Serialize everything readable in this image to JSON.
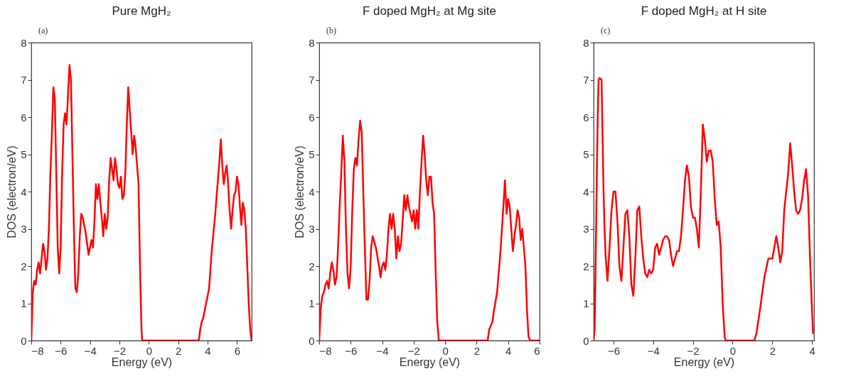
{
  "chart_data": [
    {
      "type": "line",
      "title": "Pure MgH₂",
      "xlabel": "Energy (eV)",
      "ylabel": "DOS (electron/eV)",
      "annotations": [
        "(a)"
      ],
      "xlim": [
        -8,
        7
      ],
      "ylim": [
        0,
        8
      ],
      "xticks": [
        -8,
        -6,
        -4,
        -2,
        0,
        2,
        4,
        6
      ],
      "yticks": [
        0,
        1,
        2,
        3,
        4,
        5,
        6,
        7,
        8
      ],
      "series": [
        {
          "color": "#ff0000",
          "x": [
            -8.0,
            -7.9,
            -7.8,
            -7.7,
            -7.6,
            -7.5,
            -7.4,
            -7.3,
            -7.2,
            -7.1,
            -7.0,
            -6.9,
            -6.8,
            -6.7,
            -6.6,
            -6.5,
            -6.4,
            -6.3,
            -6.2,
            -6.1,
            -6.0,
            -5.9,
            -5.8,
            -5.7,
            -5.6,
            -5.5,
            -5.4,
            -5.3,
            -5.2,
            -5.1,
            -5.0,
            -4.9,
            -4.8,
            -4.7,
            -4.6,
            -4.5,
            -4.3,
            -4.1,
            -4.0,
            -3.9,
            -3.8,
            -3.7,
            -3.6,
            -3.5,
            -3.4,
            -3.3,
            -3.2,
            -3.1,
            -3.0,
            -2.9,
            -2.8,
            -2.7,
            -2.6,
            -2.5,
            -2.4,
            -2.3,
            -2.2,
            -2.1,
            -2.0,
            -1.9,
            -1.8,
            -1.7,
            -1.6,
            -1.5,
            -1.4,
            -1.3,
            -1.2,
            -1.1,
            -1.0,
            -0.9,
            -0.8,
            -0.7,
            -0.6,
            -0.5,
            -0.45,
            3.4,
            3.5,
            3.6,
            3.7,
            3.9,
            4.1,
            4.3,
            4.5,
            4.7,
            4.8,
            4.9,
            5.0,
            5.1,
            5.2,
            5.3,
            5.4,
            5.5,
            5.6,
            5.7,
            5.8,
            5.9,
            6.0,
            6.1,
            6.2,
            6.3,
            6.4,
            6.5,
            6.6,
            6.7,
            6.8,
            6.9,
            7.0
          ],
          "values": [
            0,
            1.3,
            1.6,
            1.5,
            1.9,
            2.1,
            1.8,
            2.2,
            2.6,
            2.4,
            1.9,
            2.2,
            3.0,
            4.5,
            5.5,
            6.8,
            6.5,
            4.5,
            2.5,
            1.8,
            2.5,
            4.5,
            5.8,
            6.1,
            5.8,
            6.6,
            7.4,
            7.0,
            5.0,
            3.0,
            1.4,
            1.3,
            1.8,
            2.8,
            3.4,
            3.3,
            2.9,
            2.3,
            2.5,
            2.7,
            2.5,
            3.2,
            4.2,
            3.8,
            4.2,
            3.7,
            3.3,
            2.8,
            3.4,
            3.0,
            3.3,
            4.3,
            4.9,
            4.6,
            4.3,
            4.9,
            4.6,
            4.2,
            4.1,
            4.4,
            3.8,
            3.9,
            4.5,
            5.8,
            6.8,
            6.2,
            5.6,
            5.0,
            5.5,
            5.2,
            4.7,
            4.2,
            2.0,
            0.3,
            0,
            0,
            0.3,
            0.5,
            0.6,
            1.0,
            1.4,
            2.5,
            3.3,
            4.3,
            4.8,
            5.4,
            4.7,
            4.2,
            4.5,
            4.7,
            4.2,
            3.5,
            3.0,
            3.5,
            3.9,
            4.0,
            4.4,
            4.2,
            3.6,
            3.1,
            3.7,
            3.5,
            3.0,
            2.0,
            1.0,
            0.3,
            0
          ]
        }
      ]
    },
    {
      "type": "line",
      "title": "F doped MgH₂ at Mg site",
      "xlabel": "Energy (eV)",
      "ylabel": "DOS (electron/eV)",
      "annotations": [
        "(b)"
      ],
      "xlim": [
        -8,
        6
      ],
      "ylim": [
        0,
        8
      ],
      "xticks": [
        -8,
        -6,
        -4,
        -2,
        0,
        2,
        4,
        6
      ],
      "yticks": [
        0,
        1,
        2,
        3,
        4,
        5,
        6,
        7,
        8
      ],
      "series": [
        {
          "color": "#ff0000",
          "x": [
            -8.0,
            -7.9,
            -7.8,
            -7.7,
            -7.6,
            -7.5,
            -7.4,
            -7.3,
            -7.2,
            -7.1,
            -7.0,
            -6.9,
            -6.8,
            -6.7,
            -6.6,
            -6.5,
            -6.4,
            -6.3,
            -6.2,
            -6.1,
            -6.0,
            -5.9,
            -5.8,
            -5.7,
            -5.6,
            -5.5,
            -5.4,
            -5.3,
            -5.2,
            -5.1,
            -5.0,
            -4.9,
            -4.8,
            -4.7,
            -4.6,
            -4.4,
            -4.2,
            -4.1,
            -4.0,
            -3.9,
            -3.8,
            -3.7,
            -3.6,
            -3.5,
            -3.4,
            -3.3,
            -3.2,
            -3.1,
            -3.0,
            -2.9,
            -2.8,
            -2.7,
            -2.6,
            -2.5,
            -2.4,
            -2.3,
            -2.2,
            -2.1,
            -2.0,
            -1.9,
            -1.8,
            -1.7,
            -1.6,
            -1.5,
            -1.4,
            -1.3,
            -1.2,
            -1.1,
            -1.0,
            -0.9,
            -0.8,
            -0.7,
            -0.6,
            -0.5,
            -0.4,
            2.7,
            2.8,
            2.9,
            3.0,
            3.1,
            3.3,
            3.5,
            3.7,
            3.8,
            3.9,
            4.0,
            4.1,
            4.2,
            4.3,
            4.4,
            4.5,
            4.6,
            4.7,
            4.8,
            4.9,
            5.0,
            5.1,
            5.2,
            5.3,
            5.4,
            6.0
          ],
          "values": [
            0,
            0.9,
            1.2,
            1.3,
            1.5,
            1.6,
            1.4,
            1.8,
            2.1,
            1.9,
            1.5,
            1.7,
            2.5,
            3.6,
            4.5,
            5.5,
            4.8,
            3.0,
            1.8,
            1.4,
            2.0,
            3.5,
            4.6,
            4.9,
            4.7,
            5.4,
            5.9,
            5.6,
            4.0,
            2.5,
            1.1,
            1.1,
            1.6,
            2.5,
            2.8,
            2.5,
            2.0,
            1.7,
            2.0,
            2.1,
            1.9,
            2.3,
            3.0,
            3.4,
            3.0,
            3.4,
            3.0,
            2.2,
            2.8,
            2.4,
            2.6,
            3.2,
            3.9,
            3.5,
            3.9,
            3.6,
            3.4,
            3.2,
            3.5,
            3.0,
            3.5,
            3.0,
            4.0,
            4.8,
            5.5,
            5.0,
            4.3,
            3.9,
            4.4,
            4.4,
            3.7,
            3.4,
            1.8,
            0.5,
            0,
            0,
            0.3,
            0.4,
            0.5,
            0.8,
            1.3,
            2.3,
            3.6,
            4.3,
            3.4,
            3.8,
            3.6,
            3.0,
            2.4,
            2.8,
            3.1,
            3.5,
            3.3,
            2.7,
            3.0,
            2.5,
            2.0,
            0.8,
            0.1,
            0,
            0
          ]
        }
      ]
    },
    {
      "type": "line",
      "title": "F doped MgH₂ at H site",
      "xlabel": "Energy (eV)",
      "annotations": [
        "(c)"
      ],
      "xlim": [
        -7,
        4.1
      ],
      "ylim": [
        0,
        8
      ],
      "xticks": [
        -6,
        -4,
        -2,
        0,
        2,
        4
      ],
      "yticks": [
        0,
        1,
        2,
        3,
        4,
        5,
        6,
        7,
        8
      ],
      "series": [
        {
          "color": "#ff0000",
          "x": [
            -7.0,
            -6.95,
            -6.9,
            -6.85,
            -6.8,
            -6.75,
            -6.7,
            -6.6,
            -6.55,
            -6.5,
            -6.45,
            -6.4,
            -6.3,
            -6.2,
            -6.1,
            -6.0,
            -5.9,
            -5.8,
            -5.7,
            -5.6,
            -5.5,
            -5.4,
            -5.3,
            -5.2,
            -5.1,
            -5.0,
            -4.9,
            -4.8,
            -4.7,
            -4.6,
            -4.5,
            -4.4,
            -4.3,
            -4.2,
            -4.1,
            -4.0,
            -3.9,
            -3.8,
            -3.7,
            -3.6,
            -3.5,
            -3.4,
            -3.3,
            -3.2,
            -3.1,
            -3.0,
            -2.9,
            -2.8,
            -2.7,
            -2.6,
            -2.5,
            -2.4,
            -2.3,
            -2.2,
            -2.1,
            -2.0,
            -1.9,
            -1.8,
            -1.7,
            -1.6,
            -1.5,
            -1.4,
            -1.3,
            -1.2,
            -1.1,
            -1.0,
            -0.9,
            -0.8,
            -0.7,
            -0.6,
            -0.5,
            -0.4,
            -0.35,
            1.1,
            1.2,
            1.4,
            1.6,
            1.8,
            1.9,
            2.0,
            2.1,
            2.2,
            2.3,
            2.4,
            2.5,
            2.6,
            2.7,
            2.8,
            2.9,
            3.0,
            3.1,
            3.2,
            3.3,
            3.4,
            3.5,
            3.6,
            3.7,
            3.8,
            3.9,
            4.0,
            4.05
          ],
          "values": [
            0,
            0.3,
            2,
            4,
            5.8,
            7.0,
            7.05,
            7.0,
            5.5,
            4.0,
            3.0,
            2.3,
            1.6,
            2.5,
            3.5,
            4.0,
            4.0,
            3.2,
            2.0,
            1.6,
            2.5,
            3.4,
            3.5,
            2.8,
            1.5,
            1.2,
            2.2,
            3.5,
            3.6,
            2.8,
            2.2,
            1.8,
            1.7,
            1.9,
            1.8,
            1.9,
            2.5,
            2.6,
            2.3,
            2.5,
            2.7,
            2.8,
            2.8,
            2.7,
            2.3,
            2.0,
            2.2,
            2.4,
            2.4,
            2.8,
            3.5,
            4.3,
            4.7,
            4.4,
            3.6,
            3.3,
            3.3,
            3.0,
            2.5,
            4.0,
            5.8,
            5.4,
            4.8,
            5.1,
            5.1,
            4.8,
            3.8,
            3.1,
            3.2,
            2.5,
            1.0,
            0.1,
            0,
            0,
            0.2,
            0.9,
            1.7,
            2.2,
            2.2,
            2.2,
            2.5,
            2.8,
            2.5,
            2.1,
            2.4,
            3.5,
            4.0,
            4.5,
            5.3,
            4.7,
            4.0,
            3.5,
            3.4,
            3.5,
            3.8,
            4.3,
            4.6,
            3.9,
            2.2,
            0.8,
            0.2
          ]
        }
      ]
    }
  ]
}
